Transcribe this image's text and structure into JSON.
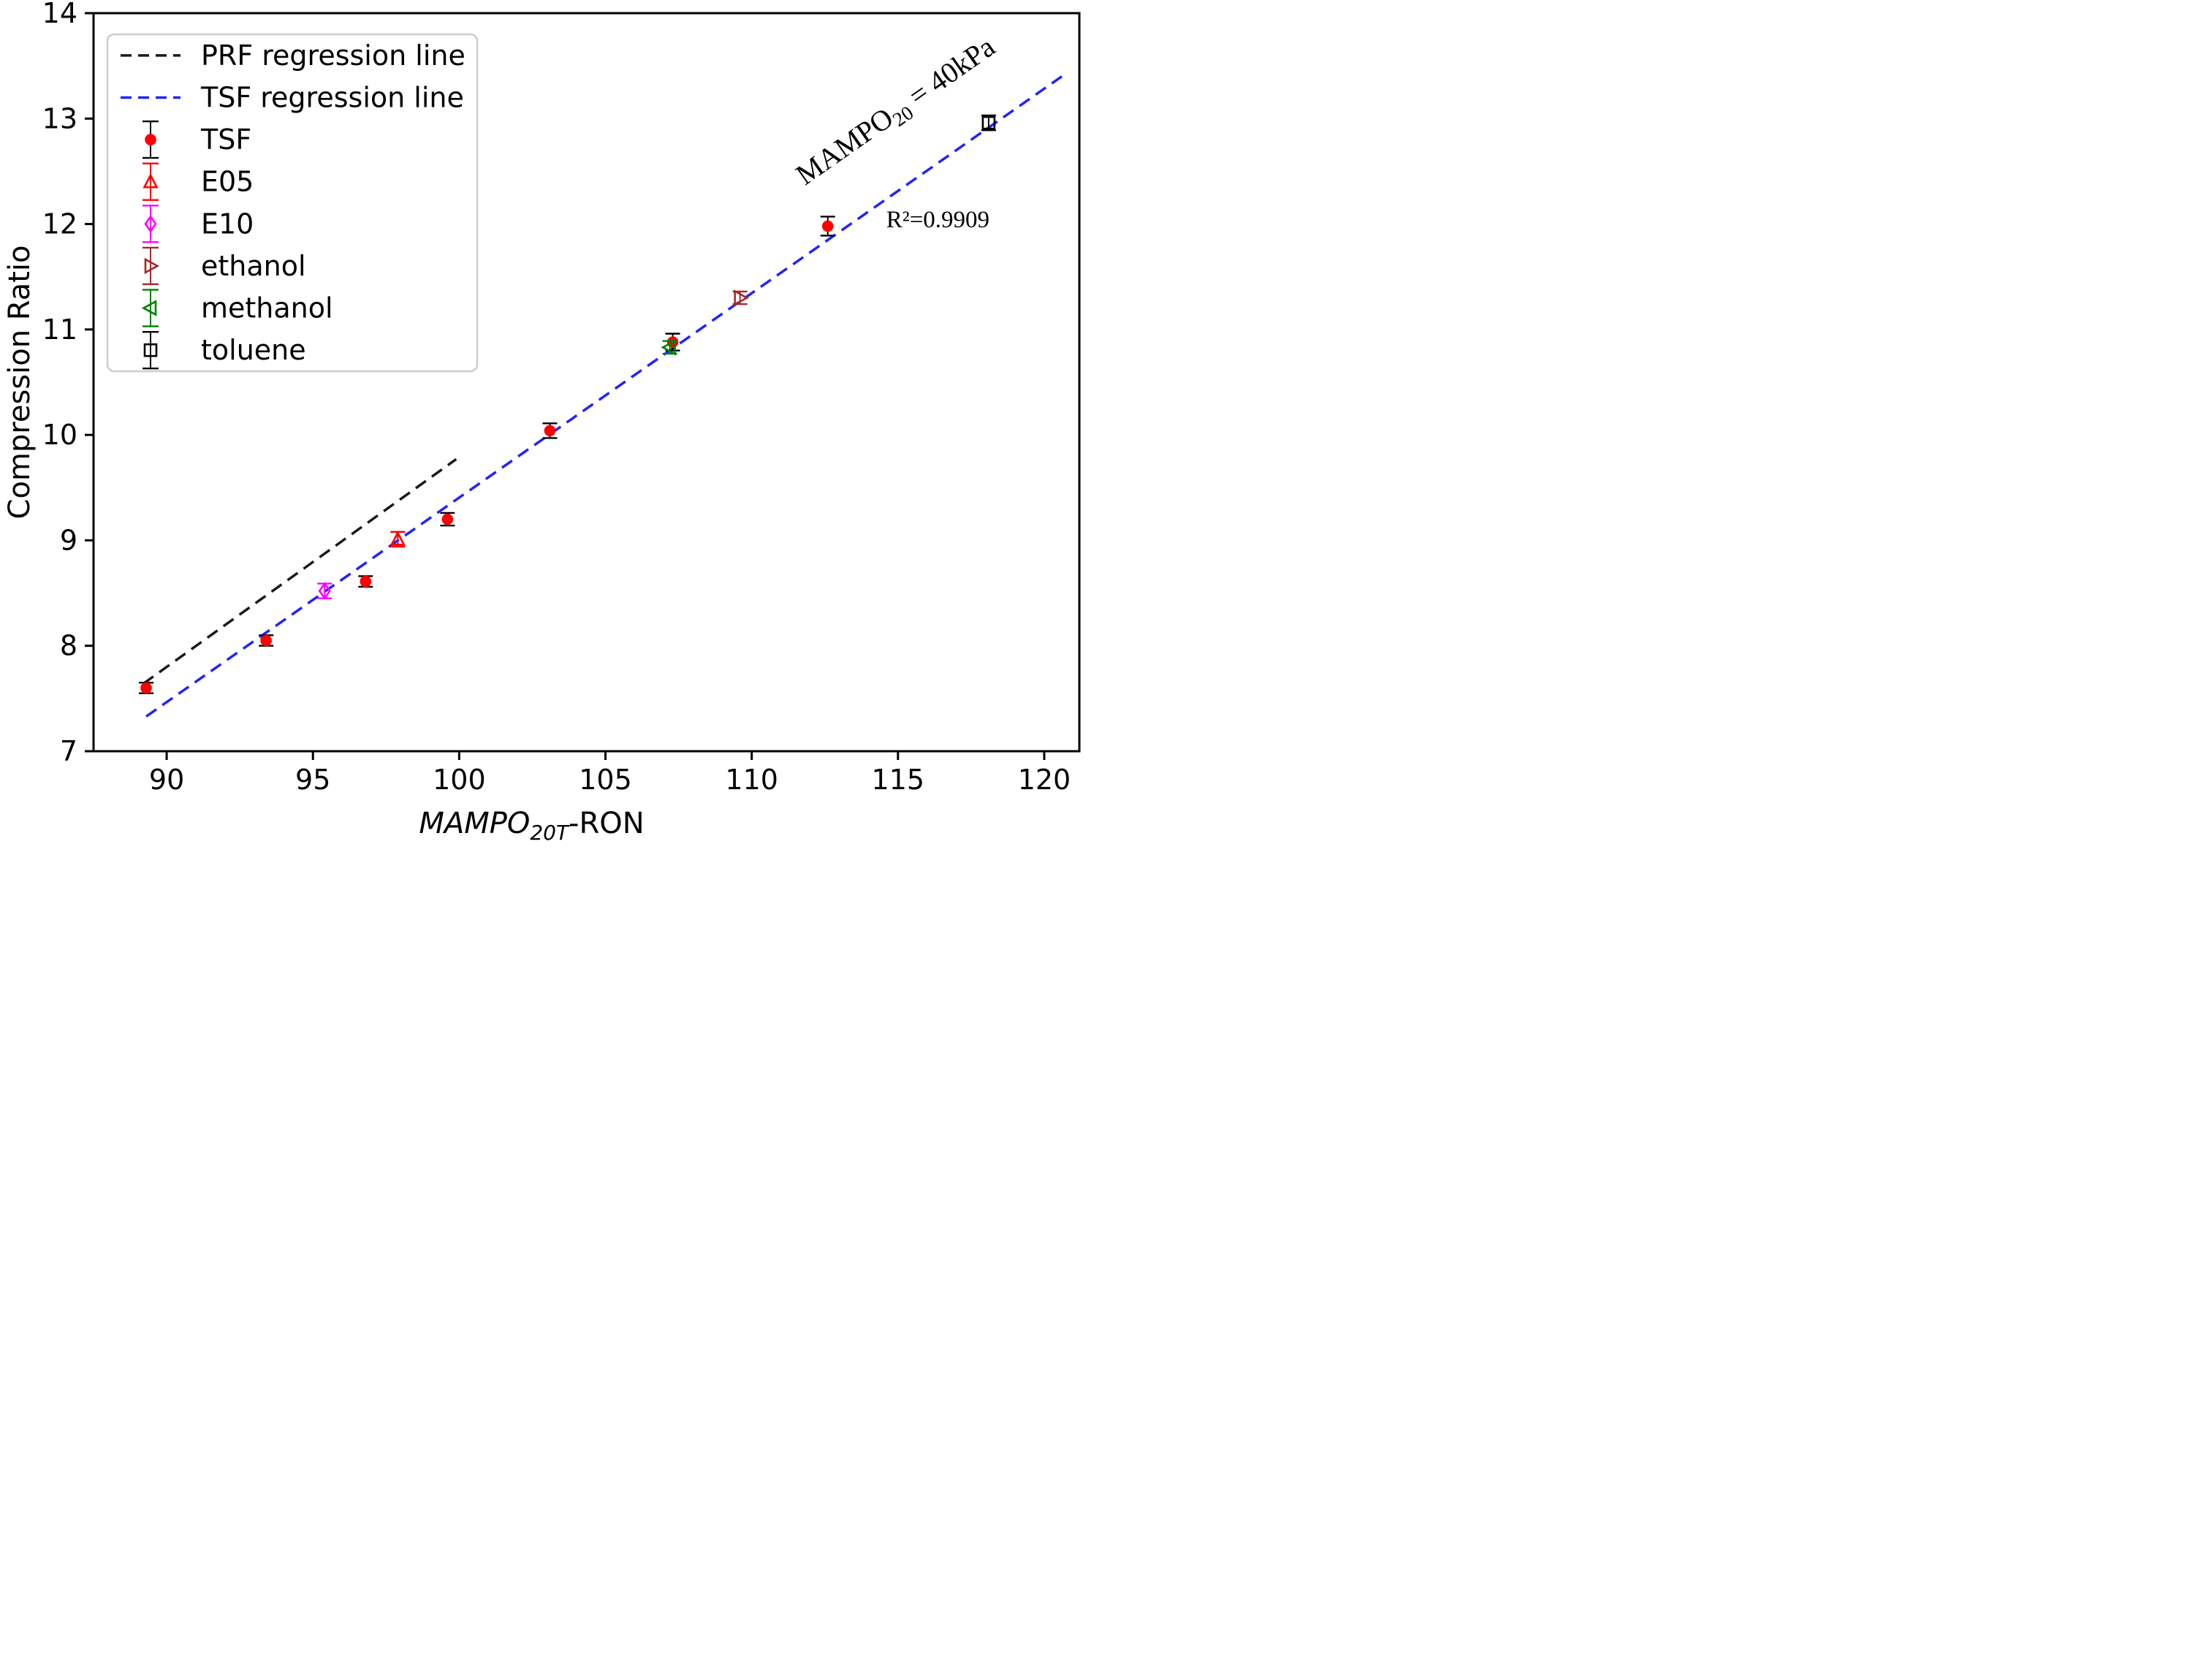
{
  "figure": {
    "background": "#ffffff",
    "text_color": "#000000"
  },
  "chart_data": {
    "type": "scatter",
    "title": "",
    "xlabel": {
      "main": "MAMPO",
      "subscript": "20T",
      "suffix": "-RON"
    },
    "ylabel": "Compression Ratio",
    "xlim": [
      87.5,
      121.2
    ],
    "ylim": [
      7,
      14
    ],
    "xticks": [
      90,
      95,
      100,
      105,
      110,
      115,
      120
    ],
    "yticks": [
      7,
      8,
      9,
      10,
      11,
      12,
      13,
      14
    ],
    "grid": false,
    "legend_position": "upper-left",
    "series": [
      {
        "name": "TSF",
        "marker": "circle",
        "marker_fill": "#ff0000",
        "marker_edge": "#ff0000",
        "err_color": "#000000",
        "points": [
          {
            "x": 89.3,
            "y": 7.6,
            "err": 0.05
          },
          {
            "x": 93.4,
            "y": 8.05,
            "err": 0.05
          },
          {
            "x": 96.8,
            "y": 8.61,
            "err": 0.05
          },
          {
            "x": 99.6,
            "y": 9.2,
            "err": 0.06
          },
          {
            "x": 103.1,
            "y": 10.04,
            "err": 0.07
          },
          {
            "x": 107.3,
            "y": 10.88,
            "err": 0.08
          },
          {
            "x": 112.6,
            "y": 11.98,
            "err": 0.09
          }
        ]
      },
      {
        "name": "E05",
        "marker": "triangle-up",
        "marker_fill": "none",
        "marker_edge": "#ff0000",
        "err_color": "#ff0000",
        "points": [
          {
            "x": 97.9,
            "y": 9.01,
            "err": 0.07
          }
        ]
      },
      {
        "name": "E10",
        "marker": "diamond",
        "marker_fill": "none",
        "marker_edge": "#ff00ff",
        "err_color": "#ff00ff",
        "points": [
          {
            "x": 95.4,
            "y": 8.52,
            "err": 0.07
          }
        ]
      },
      {
        "name": "ethanol",
        "marker": "triangle-right",
        "marker_fill": "none",
        "marker_edge": "#a52a2a",
        "err_color": "#a52a2a",
        "points": [
          {
            "x": 109.6,
            "y": 11.3,
            "err": 0.06
          }
        ]
      },
      {
        "name": "methanol",
        "marker": "triangle-left",
        "marker_fill": "none",
        "marker_edge": "#008000",
        "err_color": "#008000",
        "points": [
          {
            "x": 107.2,
            "y": 10.83,
            "err": 0.06
          }
        ]
      },
      {
        "name": "toluene",
        "marker": "square",
        "marker_fill": "none",
        "marker_edge": "#000000",
        "err_color": "#000000",
        "points": [
          {
            "x": 118.1,
            "y": 12.96,
            "err": 0.07
          }
        ]
      }
    ],
    "lines": [
      {
        "name": "PRF regression line",
        "color": "#1a1a1a",
        "x1": 89.2,
        "y1": 7.64,
        "x2": 99.9,
        "y2": 9.77,
        "dash": "17 10",
        "width": 3.5
      },
      {
        "name": "TSF regression line",
        "color": "#2222ff",
        "x1": 89.3,
        "y1": 7.33,
        "x2": 120.6,
        "y2": 13.4,
        "dash": "17 10",
        "width": 3.5
      }
    ],
    "legend": {
      "entries": [
        {
          "label": "PRF regression line",
          "kind": "line",
          "ref": "PRF regression line"
        },
        {
          "label": "TSF regression line",
          "kind": "line",
          "ref": "TSF regression line"
        },
        {
          "label": "TSF",
          "kind": "marker",
          "ref": "TSF"
        },
        {
          "label": "E05",
          "kind": "marker",
          "ref": "E05"
        },
        {
          "label": "E10",
          "kind": "marker",
          "ref": "E10"
        },
        {
          "label": "ethanol",
          "kind": "marker",
          "ref": "ethanol"
        },
        {
          "label": "methanol",
          "kind": "marker",
          "ref": "methanol"
        },
        {
          "label": "toluene",
          "kind": "marker",
          "ref": "toluene"
        }
      ]
    },
    "annotations": [
      {
        "id": "mampo-condition",
        "main": "MAMPO",
        "subscript": "20",
        "suffix": " = 40kPa",
        "x": 115.1,
        "y": 13.0,
        "rotation": -35,
        "font_size": 40,
        "color": "#000000"
      },
      {
        "id": "r-squared",
        "main": "R²=0.9909",
        "subscript": "",
        "suffix": "",
        "x": 114.6,
        "y": 11.97,
        "rotation": 0,
        "font_size": 33,
        "color": "#000000"
      }
    ]
  }
}
